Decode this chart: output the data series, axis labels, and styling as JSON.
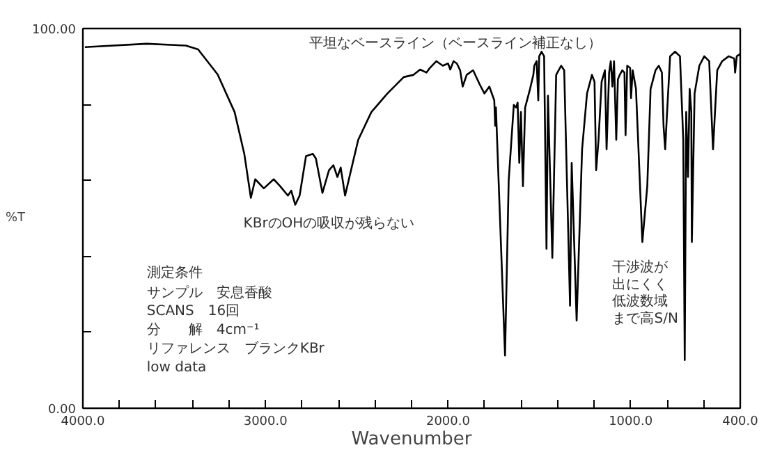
{
  "chart_data": {
    "type": "line",
    "xlabel": "Wavenumber",
    "ylabel": "%T",
    "annotations": [
      "平坦なベースライン（ベースライン補正なし）",
      "KBrのOHの吸収が残らない",
      "測定条件",
      "サンプル　安息香酸",
      "SCANS　16回",
      "分　　解　4cm⁻¹",
      "リファレンス　ブランクKBr",
      "low data",
      "干渉波が",
      "出にくく",
      "低波数域",
      "まで高S/N"
    ],
    "x": [
      3989,
      3650,
      3436,
      3369,
      3262,
      3169,
      3116,
      3080,
      3056,
      3009,
      2955,
      2920,
      2877,
      2859,
      2837,
      2813,
      2778,
      2741,
      2724,
      2688,
      2652,
      2628,
      2606,
      2588,
      2564,
      2528,
      2492,
      2420,
      2332,
      2243,
      2189,
      2153,
      2118,
      2100,
      2064,
      2029,
      2000,
      1988,
      1970,
      1952,
      1934,
      1920,
      1898,
      1863,
      1827,
      1801,
      1774,
      1747,
      1742,
      1738,
      1688,
      1668,
      1640,
      1627,
      1619,
      1610,
      1601,
      1590,
      1578,
      1551,
      1533,
      1528,
      1515,
      1506,
      1501,
      1488,
      1474,
      1461,
      1453,
      1429,
      1408,
      1381,
      1364,
      1332,
      1323,
      1296,
      1266,
      1239,
      1212,
      1198,
      1189,
      1176,
      1159,
      1141,
      1132,
      1118,
      1109,
      1100,
      1091,
      1079,
      1070,
      1060,
      1046,
      1034,
      1028,
      1019,
      1003,
      998,
      989,
      971,
      936,
      909,
      891,
      864,
      846,
      829,
      820,
      811,
      802,
      784,
      757,
      730,
      712,
      704,
      696,
      686,
      677,
      668,
      665,
      650,
      624,
      597,
      570,
      549,
      526,
      499,
      463,
      433,
      428,
      419,
      400
    ],
    "series": [
      {
        "color": "#000000",
        "values": [
          95.1,
          96.0,
          95.5,
          94.5,
          87.9,
          78.0,
          67.0,
          55.4,
          60.3,
          57.9,
          60.3,
          58.5,
          56.0,
          57.3,
          53.6,
          56.0,
          66.4,
          67.0,
          65.8,
          56.7,
          62.7,
          64.0,
          60.9,
          63.4,
          56.0,
          63.4,
          70.7,
          78.0,
          82.9,
          87.2,
          87.8,
          89.2,
          88.4,
          89.6,
          91.4,
          90.2,
          90.8,
          89.2,
          91.4,
          90.8,
          89.0,
          84.7,
          87.8,
          89.0,
          85.3,
          82.9,
          84.7,
          81.1,
          74.4,
          79.2,
          13.9,
          60.0,
          79.9,
          79.2,
          80.5,
          64.6,
          78.0,
          58.5,
          79.2,
          84.1,
          87.8,
          90.2,
          91.4,
          81.1,
          92.7,
          93.9,
          92.7,
          42.0,
          82.3,
          39.6,
          87.8,
          90.2,
          89.0,
          27.0,
          64.6,
          23.1,
          68.2,
          82.9,
          87.8,
          86.0,
          62.7,
          70.7,
          86.0,
          89.0,
          68.2,
          88.4,
          91.4,
          84.7,
          91.4,
          70.7,
          86.6,
          87.8,
          89.0,
          88.4,
          71.9,
          90.2,
          89.6,
          81.7,
          89.0,
          84.1,
          43.8,
          58.5,
          84.1,
          89.0,
          90.2,
          88.4,
          74.4,
          68.2,
          76.7,
          92.7,
          93.9,
          92.7,
          70.7,
          12.7,
          78.0,
          60.9,
          84.1,
          78.0,
          43.8,
          82.9,
          90.2,
          92.7,
          91.4,
          68.2,
          89.0,
          91.4,
          92.7,
          92.1,
          88.4,
          92.7,
          93.3
        ]
      }
    ],
    "xlim": [
      4000,
      400
    ],
    "xticks": [
      {
        "value": 4000,
        "label": "4000.0"
      },
      {
        "value": 3800,
        "label": null
      },
      {
        "value": 3600,
        "label": null
      },
      {
        "value": 3400,
        "label": null
      },
      {
        "value": 3200,
        "label": null
      },
      {
        "value": 3000,
        "label": "3000.0"
      },
      {
        "value": 2800,
        "label": null
      },
      {
        "value": 2600,
        "label": null
      },
      {
        "value": 2400,
        "label": null
      },
      {
        "value": 2200,
        "label": null
      },
      {
        "value": 2000,
        "label": "2000.0"
      },
      {
        "value": 1800,
        "label": null
      },
      {
        "value": 1600,
        "label": null
      },
      {
        "value": 1400,
        "label": null
      },
      {
        "value": 1200,
        "label": null
      },
      {
        "value": 1000,
        "label": "1000.0"
      },
      {
        "value": 800,
        "label": null
      },
      {
        "value": 600,
        "label": null
      },
      {
        "value": 400,
        "label": "400.0"
      }
    ],
    "ylim": [
      0,
      100
    ],
    "yticks": [
      {
        "value": 0,
        "label": "0.00"
      },
      {
        "value": 20,
        "label": null
      },
      {
        "value": 40,
        "label": null
      },
      {
        "value": 60,
        "label": null
      },
      {
        "value": 80,
        "label": null
      },
      {
        "value": 100,
        "label": "100.00"
      }
    ],
    "grid": false,
    "marker": "none",
    "line_style": "solid"
  }
}
